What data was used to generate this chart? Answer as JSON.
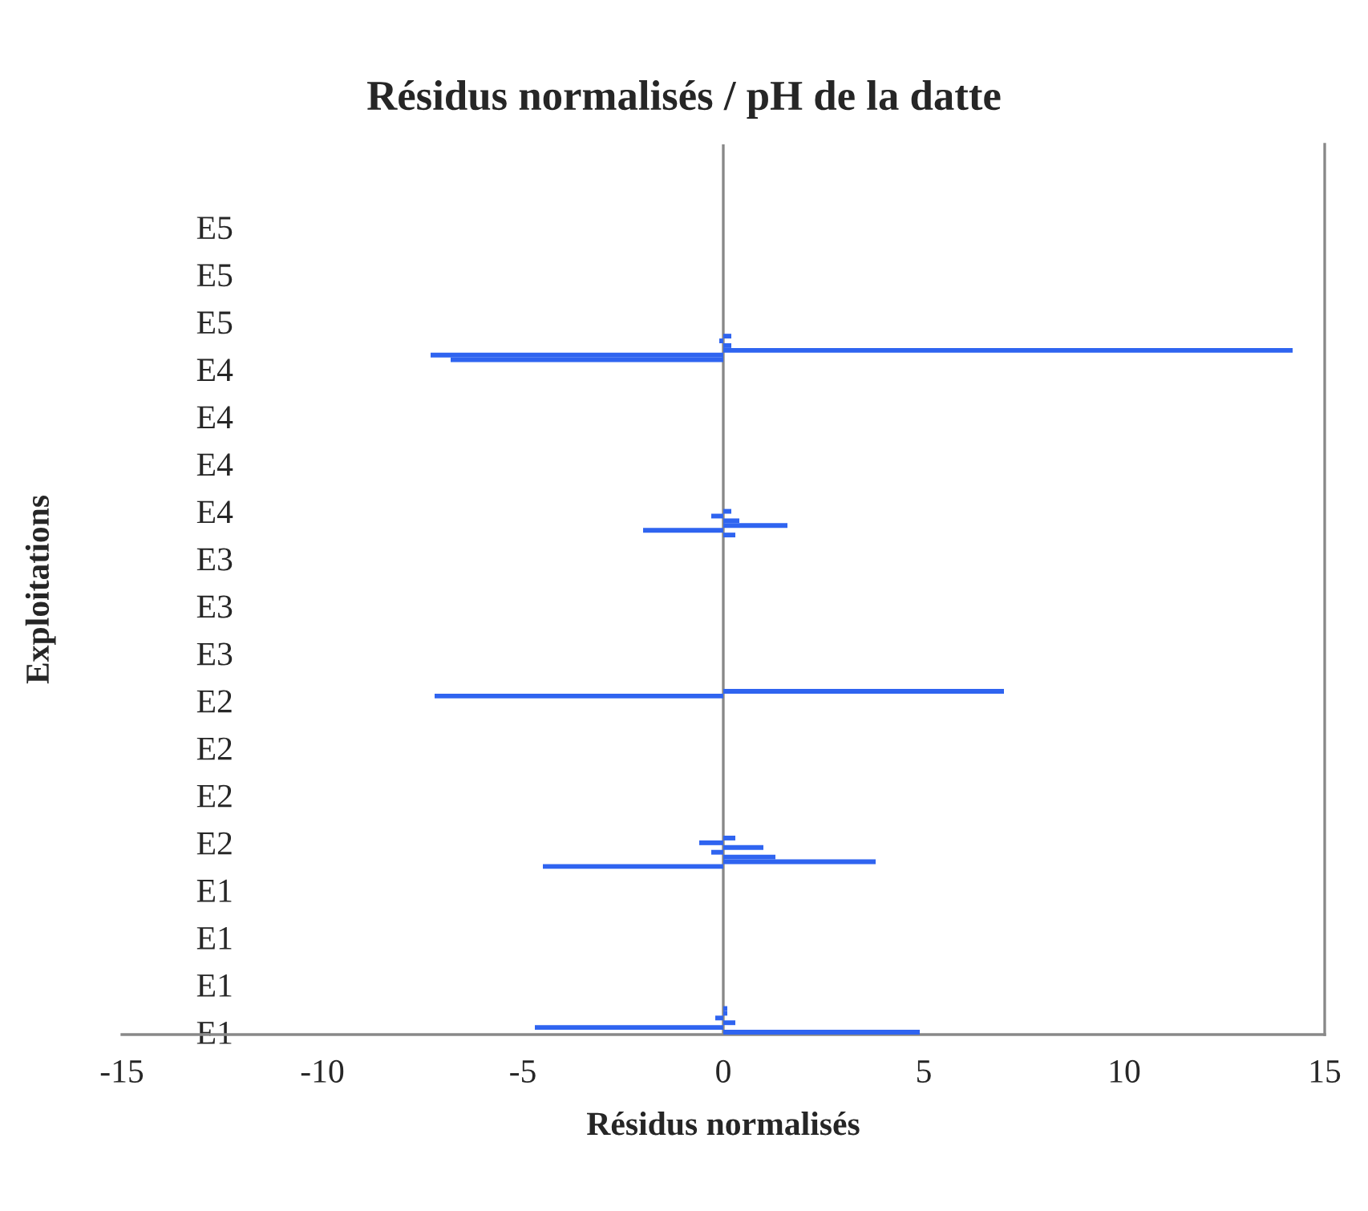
{
  "chart_data": {
    "type": "bar",
    "orientation": "horizontal",
    "title": "Résidus normalisés / pH de la datte",
    "xlabel": "Résidus normalisés",
    "ylabel": "Exploitations",
    "categories": [
      null,
      null,
      null,
      null,
      null,
      null,
      null,
      null,
      null,
      null,
      null,
      null,
      null,
      null,
      null,
      null,
      null,
      "E5",
      null,
      null,
      null,
      null,
      null,
      null,
      null,
      null,
      null,
      "E5",
      null,
      null,
      null,
      null,
      null,
      null,
      null,
      null,
      null,
      "E5",
      null,
      null,
      null,
      null,
      null,
      null,
      null,
      null,
      null,
      "E4",
      null,
      null,
      null,
      null,
      null,
      null,
      null,
      null,
      null,
      "E4",
      null,
      null,
      null,
      null,
      null,
      null,
      null,
      null,
      null,
      "E4",
      null,
      null,
      null,
      null,
      null,
      null,
      null,
      null,
      null,
      "E4",
      null,
      null,
      null,
      null,
      null,
      null,
      null,
      null,
      null,
      "E3",
      null,
      null,
      null,
      null,
      null,
      null,
      null,
      null,
      null,
      "E3",
      null,
      null,
      null,
      null,
      null,
      null,
      null,
      null,
      null,
      "E3",
      null,
      null,
      null,
      null,
      null,
      null,
      null,
      null,
      null,
      "E2",
      null,
      null,
      null,
      null,
      null,
      null,
      null,
      null,
      null,
      "E2",
      null,
      null,
      null,
      null,
      null,
      null,
      null,
      null,
      null,
      "E2",
      null,
      null,
      null,
      null,
      null,
      null,
      null,
      null,
      null,
      "E2",
      null,
      null,
      null,
      null,
      null,
      null,
      null,
      null,
      null,
      "E1",
      null,
      null,
      null,
      null,
      null,
      null,
      null,
      null,
      null,
      "E1",
      null,
      null,
      null,
      null,
      null,
      null,
      null,
      null,
      null,
      "E1",
      null,
      null,
      null,
      null,
      null,
      null,
      null,
      null,
      null,
      "E1"
    ],
    "values": [
      0,
      0,
      0,
      0,
      0,
      0,
      0,
      0,
      0,
      0,
      0,
      0,
      0,
      0,
      0,
      0,
      0,
      0,
      0,
      0,
      0,
      0,
      0,
      0,
      0,
      0,
      0,
      0,
      0,
      0,
      0,
      0,
      0,
      0,
      0,
      0,
      0,
      0,
      0,
      0,
      0.2,
      -0.1,
      0.2,
      14.2,
      -7.3,
      -6.8,
      0,
      0,
      0,
      0,
      0,
      0,
      0,
      0,
      0,
      0,
      0,
      0,
      0,
      0,
      0,
      0,
      0,
      0,
      0,
      0,
      0,
      0,
      0,
      0,
      0,
      0,
      0,
      0,
      0,
      0,
      0,
      0.2,
      -0.3,
      0.4,
      1.6,
      -2.0,
      0.3,
      0,
      0,
      0,
      0,
      0,
      0,
      0,
      0,
      0,
      0,
      0,
      0,
      0,
      0,
      0,
      0,
      0,
      0,
      0,
      0,
      0,
      0,
      0,
      0,
      0,
      0,
      0,
      0,
      0,
      0,
      0,
      0,
      7.0,
      -7.2,
      0,
      0,
      0,
      0,
      0,
      0,
      0,
      0,
      0,
      0,
      0,
      0,
      0,
      0,
      0,
      0,
      0,
      0,
      0,
      0,
      0,
      0,
      0,
      0,
      0,
      0,
      0,
      0,
      0,
      0.3,
      -0.6,
      1.0,
      -0.3,
      1.3,
      3.8,
      -4.5,
      0,
      0,
      0,
      0,
      0,
      0,
      0,
      0,
      0,
      0,
      0,
      0,
      0,
      0,
      0,
      0,
      0,
      0,
      0,
      0,
      0,
      0,
      0,
      0,
      0,
      0,
      0,
      0,
      0,
      0.1,
      0.1,
      -0.2,
      0.3,
      -4.7,
      4.9
    ],
    "color": "#2f64f0",
    "xlim": [
      -15,
      15
    ],
    "xticks": [
      -15,
      -10,
      -5,
      0,
      5,
      10,
      15
    ],
    "ref_lines": [
      {
        "axis": "x",
        "value": 0,
        "color": "#888888"
      }
    ],
    "grid": false,
    "legend": false
  }
}
